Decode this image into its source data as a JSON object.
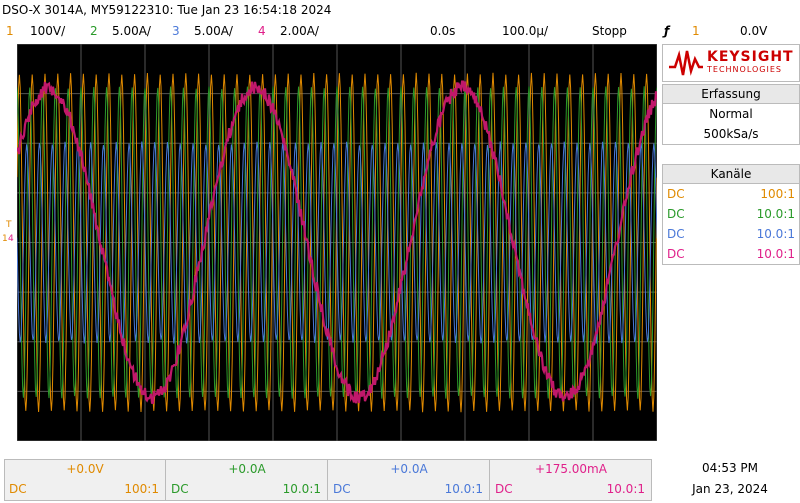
{
  "title": {
    "model": "DSO-X 3014A, MY59122310: Tue Jan 23 16:54:18 2024"
  },
  "channel_bar": {
    "ch1_num": "1",
    "ch1_scale": "100V/",
    "ch2_num": "2",
    "ch2_scale": "5.00A/",
    "ch3_num": "3",
    "ch3_scale": "5.00A/",
    "ch4_num": "4",
    "ch4_scale": "2.00A/",
    "time_delay": "0.0s",
    "time_scale": "100.0µ/",
    "run_state": "Stopp",
    "trigger_symbol": "ƒ",
    "trigger_ch": "1",
    "trigger_level": "0.0V"
  },
  "logo": {
    "brand": "KEYSIGHT",
    "sub": "TECHNOLOGIES"
  },
  "acquisition": {
    "header": "Erfassung",
    "mode": "Normal",
    "rate": "500kSa/s"
  },
  "channels": {
    "header": "Kanäle",
    "rows": [
      {
        "coupling": "DC",
        "probe": "100:1",
        "color": "#e08a00"
      },
      {
        "coupling": "DC",
        "probe": "10.0:1",
        "color": "#2a9a2a"
      },
      {
        "coupling": "DC",
        "probe": "10.0:1",
        "color": "#4a78d8"
      },
      {
        "coupling": "DC",
        "probe": "10.0:1",
        "color": "#e0208a"
      }
    ]
  },
  "offsets": [
    {
      "value": "+0.0V",
      "coupling": "DC",
      "probe": "100:1",
      "color": "#e08a00"
    },
    {
      "value": "+0.0A",
      "coupling": "DC",
      "probe": "10.0:1",
      "color": "#2a9a2a"
    },
    {
      "value": "+0.0A",
      "coupling": "DC",
      "probe": "10.0:1",
      "color": "#4a78d8"
    },
    {
      "value": "+175.00mA",
      "coupling": "DC",
      "probe": "10.0:1",
      "color": "#e0208a"
    }
  ],
  "clock": {
    "time": "04:53 PM",
    "date": "Jan 23, 2024"
  },
  "marker_trigger": "T",
  "colors": {
    "ch1": "#e08a00",
    "ch2": "#2a9a2a",
    "ch3": "#4a78d8",
    "ch4": "#e0208a",
    "ch4_trace": "#c0186a",
    "grid": "#555555"
  },
  "waveforms": {
    "ch1_cycles": 50,
    "ch1_amp": 0.85,
    "ch2_cycles": 50,
    "ch2_amp": 0.78,
    "ch3_cycles": 50,
    "ch3_amp": 0.5,
    "ch4_cycles": 3.1,
    "ch4_amp": 0.78
  }
}
